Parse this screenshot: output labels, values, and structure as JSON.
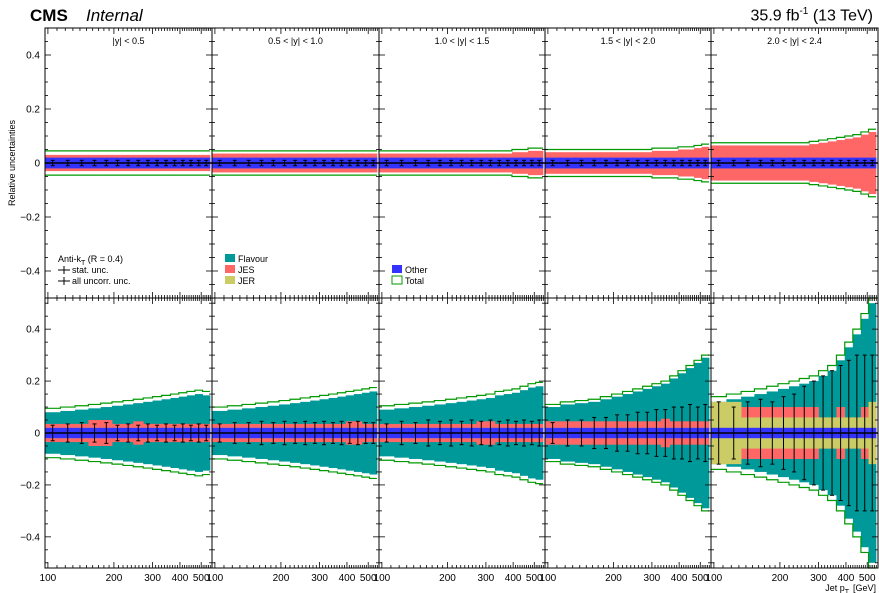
{
  "header": {
    "experiment": "CMS",
    "status": "Internal",
    "lumi_value": "35.9 fb",
    "lumi_exp": "-1",
    "energy": " (13 TeV)"
  },
  "colors": {
    "flavour": "#009999",
    "jes": "#ff6666",
    "jer": "#cccc66",
    "other": "#3333ff",
    "total": "#009900",
    "stat": "#000000"
  },
  "chart_data": {
    "type": "area",
    "ylabel": "Relative uncertainties",
    "xlabel": "Jet p",
    "xlabel_sub": "T",
    "xlabel_unit": "[GeV]",
    "x_scale": "log",
    "xlim": [
      97,
      560
    ],
    "rows": [
      {
        "name": "top",
        "ylim": [
          -0.5,
          0.5
        ],
        "yticks": [
          -0.4,
          -0.2,
          0,
          0.2,
          0.4
        ],
        "ytick_labels": [
          "−0.4",
          "−0.2",
          "0",
          "0.2",
          "0.4"
        ]
      },
      {
        "name": "bottom",
        "ylim": [
          -0.52,
          0.52
        ],
        "yticks": [
          -0.4,
          -0.2,
          0,
          0.2,
          0.4
        ],
        "ytick_labels": [
          "−0.4",
          "−0.2",
          "0",
          "0.2",
          "0.4"
        ]
      }
    ],
    "xticks": [
      100,
      200,
      300,
      400,
      500
    ],
    "xtick_labels": [
      "100",
      "200",
      "300",
      "400",
      "500"
    ],
    "panels": [
      {
        "label": "|y| < 0.5",
        "bins": [
          97,
          114,
          133,
          153,
          174,
          196,
          220,
          245,
          272,
          300,
          330,
          362,
          395,
          430,
          468,
          507,
          548
        ],
        "top": {
          "total": [
            0.045,
            0.045,
            0.045,
            0.045,
            0.045,
            0.045,
            0.045,
            0.045,
            0.045,
            0.045,
            0.045,
            0.045,
            0.045,
            0.045,
            0.045,
            0.045
          ],
          "jes": [
            0.03,
            0.03,
            0.03,
            0.03,
            0.03,
            0.03,
            0.03,
            0.03,
            0.03,
            0.03,
            0.03,
            0.03,
            0.03,
            0.03,
            0.03,
            0.03
          ],
          "other": 0.02,
          "err": 0.01
        },
        "bottom": {
          "total": [
            0.095,
            0.1,
            0.105,
            0.11,
            0.115,
            0.12,
            0.125,
            0.13,
            0.135,
            0.14,
            0.145,
            0.15,
            0.155,
            0.16,
            0.165,
            0.16
          ],
          "flavour": [
            0.08,
            0.085,
            0.09,
            0.095,
            0.1,
            0.105,
            0.11,
            0.115,
            0.12,
            0.125,
            0.13,
            0.135,
            0.14,
            0.145,
            0.15,
            0.145
          ],
          "jes": [
            0.035,
            0.035,
            0.035,
            0.05,
            0.05,
            0.035,
            0.035,
            0.045,
            0.035,
            0.035,
            0.035,
            0.035,
            0.035,
            0.035,
            0.035,
            0.035
          ],
          "jer": [
            0.02,
            0.02,
            0.02,
            0.02,
            0.02,
            0.02,
            0.02,
            0.02,
            0.02,
            0.02,
            0.02,
            0.02,
            0.02,
            0.02,
            0.02,
            0.02
          ],
          "other": 0.02,
          "err": [
            0.03,
            0.035,
            0.04,
            0.035,
            0.04,
            0.03,
            0.035,
            0.03,
            0.035,
            0.03,
            0.035,
            0.03,
            0.035,
            0.03,
            0.035,
            0.03
          ]
        }
      },
      {
        "label": "0.5 < |y| < 1.0",
        "bins": [
          97,
          114,
          133,
          153,
          174,
          196,
          220,
          245,
          272,
          300,
          330,
          362,
          395,
          430,
          468,
          507,
          548
        ],
        "top": {
          "total": [
            0.045,
            0.045,
            0.045,
            0.045,
            0.045,
            0.045,
            0.045,
            0.045,
            0.045,
            0.045,
            0.045,
            0.045,
            0.045,
            0.045,
            0.045,
            0.045
          ],
          "jes": [
            0.035,
            0.035,
            0.035,
            0.035,
            0.035,
            0.035,
            0.035,
            0.035,
            0.035,
            0.035,
            0.035,
            0.035,
            0.035,
            0.035,
            0.035,
            0.035
          ],
          "other": 0.02,
          "err": 0.01
        },
        "bottom": {
          "total": [
            0.1,
            0.105,
            0.11,
            0.115,
            0.12,
            0.125,
            0.13,
            0.135,
            0.14,
            0.145,
            0.15,
            0.155,
            0.16,
            0.165,
            0.17,
            0.175
          ],
          "flavour": [
            0.085,
            0.09,
            0.095,
            0.1,
            0.105,
            0.11,
            0.115,
            0.12,
            0.125,
            0.13,
            0.135,
            0.14,
            0.145,
            0.15,
            0.155,
            0.16
          ],
          "jes": [
            0.035,
            0.035,
            0.035,
            0.035,
            0.035,
            0.035,
            0.035,
            0.035,
            0.035,
            0.035,
            0.035,
            0.035,
            0.045,
            0.045,
            0.035,
            0.035
          ],
          "jer": [
            0.02,
            0.02,
            0.02,
            0.02,
            0.02,
            0.02,
            0.02,
            0.02,
            0.02,
            0.02,
            0.02,
            0.02,
            0.02,
            0.02,
            0.02,
            0.02
          ],
          "other": 0.02,
          "err": [
            0.035,
            0.04,
            0.04,
            0.045,
            0.04,
            0.045,
            0.04,
            0.045,
            0.04,
            0.045,
            0.04,
            0.045,
            0.04,
            0.045,
            0.04,
            0.04
          ]
        }
      },
      {
        "label": "1.0 < |y| < 1.5",
        "bins": [
          97,
          114,
          133,
          153,
          174,
          196,
          220,
          245,
          272,
          300,
          330,
          362,
          395,
          430,
          468,
          507,
          548
        ],
        "top": {
          "total": [
            0.045,
            0.045,
            0.045,
            0.045,
            0.045,
            0.045,
            0.045,
            0.045,
            0.045,
            0.045,
            0.045,
            0.045,
            0.05,
            0.05,
            0.055,
            0.055
          ],
          "jes": [
            0.035,
            0.035,
            0.035,
            0.035,
            0.035,
            0.035,
            0.035,
            0.035,
            0.035,
            0.035,
            0.035,
            0.035,
            0.04,
            0.04,
            0.045,
            0.045
          ],
          "other": 0.02,
          "err": 0.01
        },
        "bottom": {
          "total": [
            0.105,
            0.11,
            0.115,
            0.12,
            0.125,
            0.13,
            0.135,
            0.14,
            0.145,
            0.15,
            0.16,
            0.165,
            0.17,
            0.18,
            0.19,
            0.195
          ],
          "flavour": [
            0.09,
            0.095,
            0.1,
            0.105,
            0.11,
            0.115,
            0.12,
            0.125,
            0.13,
            0.135,
            0.145,
            0.15,
            0.155,
            0.165,
            0.175,
            0.18
          ],
          "jes": [
            0.035,
            0.035,
            0.035,
            0.035,
            0.035,
            0.035,
            0.035,
            0.035,
            0.045,
            0.045,
            0.035,
            0.035,
            0.035,
            0.035,
            0.035,
            0.035
          ],
          "jer": [
            0.02,
            0.02,
            0.02,
            0.02,
            0.02,
            0.02,
            0.02,
            0.02,
            0.02,
            0.02,
            0.02,
            0.02,
            0.02,
            0.02,
            0.02,
            0.02
          ],
          "other": 0.02,
          "err": [
            0.035,
            0.045,
            0.04,
            0.05,
            0.045,
            0.05,
            0.045,
            0.05,
            0.045,
            0.05,
            0.045,
            0.05,
            0.045,
            0.05,
            0.045,
            0.05
          ]
        }
      },
      {
        "label": "1.5 < |y| < 2.0",
        "bins": [
          97,
          114,
          133,
          153,
          174,
          196,
          220,
          245,
          272,
          300,
          330,
          362,
          395,
          430,
          468,
          507,
          548
        ],
        "top": {
          "total": [
            0.05,
            0.05,
            0.05,
            0.05,
            0.05,
            0.05,
            0.05,
            0.05,
            0.05,
            0.055,
            0.055,
            0.055,
            0.06,
            0.06,
            0.065,
            0.07
          ],
          "jes": [
            0.04,
            0.04,
            0.04,
            0.04,
            0.04,
            0.04,
            0.04,
            0.04,
            0.04,
            0.045,
            0.045,
            0.045,
            0.05,
            0.05,
            0.055,
            0.06
          ],
          "other": 0.02,
          "err": 0.01
        },
        "bottom": {
          "total": [
            0.11,
            0.12,
            0.125,
            0.13,
            0.14,
            0.15,
            0.16,
            0.17,
            0.18,
            0.19,
            0.2,
            0.22,
            0.24,
            0.26,
            0.28,
            0.3
          ],
          "flavour": [
            0.1,
            0.11,
            0.115,
            0.12,
            0.13,
            0.14,
            0.15,
            0.16,
            0.17,
            0.18,
            0.19,
            0.21,
            0.23,
            0.25,
            0.27,
            0.29
          ],
          "jes": [
            0.045,
            0.045,
            0.045,
            0.045,
            0.045,
            0.045,
            0.045,
            0.045,
            0.045,
            0.045,
            0.055,
            0.045,
            0.045,
            0.045,
            0.045,
            0.045
          ],
          "jer": [
            0.02,
            0.02,
            0.02,
            0.02,
            0.02,
            0.02,
            0.02,
            0.02,
            0.02,
            0.02,
            0.02,
            0.02,
            0.02,
            0.02,
            0.02,
            0.02
          ],
          "other": 0.02,
          "err": [
            0.04,
            0.05,
            0.05,
            0.06,
            0.06,
            0.07,
            0.07,
            0.08,
            0.08,
            0.09,
            0.09,
            0.1,
            0.1,
            0.11,
            0.1,
            0.11
          ]
        }
      },
      {
        "label": "2.0 < |y| < 2.4",
        "bins": [
          97,
          114,
          133,
          153,
          174,
          196,
          220,
          245,
          272,
          300,
          330,
          362,
          395,
          430,
          468,
          507,
          548
        ],
        "top": {
          "total": [
            0.075,
            0.075,
            0.075,
            0.075,
            0.075,
            0.075,
            0.075,
            0.075,
            0.08,
            0.085,
            0.09,
            0.095,
            0.1,
            0.105,
            0.115,
            0.125
          ],
          "jes": [
            0.065,
            0.065,
            0.065,
            0.065,
            0.065,
            0.065,
            0.065,
            0.065,
            0.07,
            0.075,
            0.08,
            0.085,
            0.09,
            0.095,
            0.105,
            0.115
          ],
          "other": 0.02,
          "err": 0.01
        },
        "bottom": {
          "total": [
            0.14,
            0.15,
            0.16,
            0.17,
            0.18,
            0.19,
            0.2,
            0.21,
            0.22,
            0.24,
            0.26,
            0.3,
            0.35,
            0.4,
            0.46,
            0.52
          ],
          "flavour": [
            0.12,
            0.13,
            0.14,
            0.15,
            0.16,
            0.17,
            0.18,
            0.19,
            0.2,
            0.22,
            0.24,
            0.28,
            0.33,
            0.38,
            0.44,
            0.5
          ],
          "jes": [
            0.1,
            0.1,
            0.1,
            0.1,
            0.1,
            0.1,
            0.1,
            0.1,
            0.1,
            0.06,
            0.06,
            0.1,
            0.06,
            0.06,
            0.1,
            0.1
          ],
          "jer": [
            0.12,
            0.12,
            0.06,
            0.06,
            0.06,
            0.06,
            0.06,
            0.06,
            0.06,
            0.06,
            0.06,
            0.06,
            0.06,
            0.06,
            0.06,
            0.12
          ],
          "other": 0.02,
          "err": [
            0.12,
            0.1,
            0.12,
            0.13,
            0.12,
            0.14,
            0.15,
            0.18,
            0.2,
            0.22,
            0.24,
            0.26,
            0.28,
            0.3,
            0.3,
            0.3
          ]
        }
      }
    ],
    "legend": [
      {
        "key": "flavour",
        "label": "Flavour"
      },
      {
        "key": "jes",
        "label": "JES"
      },
      {
        "key": "jer",
        "label": "JER"
      },
      {
        "key": "other",
        "label": "Other"
      },
      {
        "key": "total",
        "label": "Total"
      }
    ],
    "annotation_algo": "Anti-k",
    "annotation_algo_sub": "T",
    "annotation_algo_rest": "  (R = 0.4)",
    "annotation_stat": "stat. unc.",
    "annotation_uncorr": "all uncorr. unc."
  }
}
